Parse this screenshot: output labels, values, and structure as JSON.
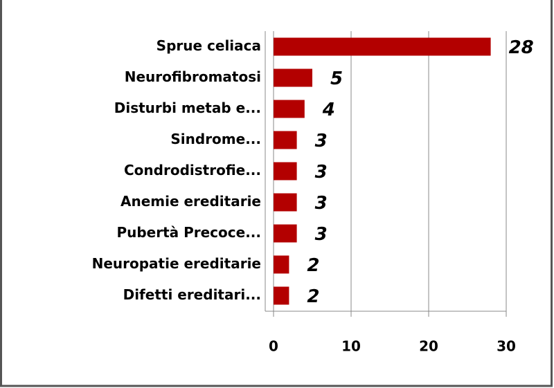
{
  "chart_data": {
    "type": "bar",
    "orientation": "horizontal",
    "categories": [
      "Sprue celiaca",
      "Neurofibromatosi",
      "Disturbi metab e...",
      "Sindrome...",
      "Condrodistrofie...",
      "Anemie ereditarie",
      "Pubertà Precoce...",
      "Neuropatie ereditarie",
      "Difetti ereditari..."
    ],
    "values": [
      28,
      5,
      4,
      3,
      3,
      3,
      3,
      2,
      2
    ],
    "color": "#b30000",
    "xlim": [
      0,
      30
    ],
    "xticks": [
      0,
      10,
      20,
      30
    ],
    "grid": true
  }
}
